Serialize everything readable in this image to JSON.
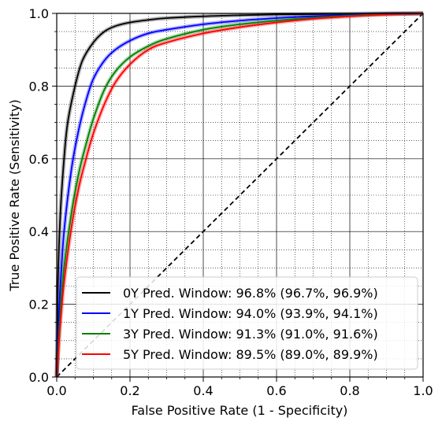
{
  "chart_data": {
    "type": "line",
    "title": "",
    "xlabel": "False Positive Rate (1 - Specificity)",
    "ylabel": "True Positive Rate (Sensitivity)",
    "xlim": [
      0,
      1
    ],
    "ylim": [
      0,
      1
    ],
    "xticks": [
      "0.0",
      "0.2",
      "0.4",
      "0.6",
      "0.8",
      "1.0"
    ],
    "yticks": [
      "0.0",
      "0.2",
      "0.4",
      "0.6",
      "0.8",
      "1.0"
    ],
    "grid": "major solid, minor dotted",
    "legend_position": "lower-right",
    "series": [
      {
        "name": "0Y Pred. Window: 96.8% (96.7%, 96.9%)",
        "color": "#000000",
        "x": [
          0,
          0.003,
          0.01,
          0.02,
          0.03,
          0.05,
          0.07,
          0.1,
          0.13,
          0.16,
          0.2,
          0.25,
          0.3,
          0.4,
          0.5,
          0.6,
          0.7,
          0.8,
          0.9,
          1.0
        ],
        "y": [
          0,
          0.25,
          0.45,
          0.6,
          0.7,
          0.8,
          0.87,
          0.92,
          0.95,
          0.965,
          0.975,
          0.982,
          0.987,
          0.992,
          0.995,
          0.997,
          0.998,
          0.999,
          1.0,
          1.0
        ]
      },
      {
        "name": "1Y Pred. Window: 94.0% (93.9%, 94.1%)",
        "color": "#0000ff",
        "x": [
          0,
          0.005,
          0.01,
          0.02,
          0.04,
          0.06,
          0.08,
          0.1,
          0.13,
          0.16,
          0.2,
          0.25,
          0.3,
          0.4,
          0.5,
          0.6,
          0.7,
          0.8,
          0.9,
          1.0
        ],
        "y": [
          0,
          0.15,
          0.25,
          0.4,
          0.57,
          0.68,
          0.76,
          0.82,
          0.87,
          0.9,
          0.925,
          0.945,
          0.955,
          0.97,
          0.98,
          0.987,
          0.992,
          0.996,
          0.999,
          1.0
        ]
      },
      {
        "name": "3Y Pred. Window: 91.3% (91.0%, 91.6%)",
        "color": "#008000",
        "x": [
          0,
          0.005,
          0.01,
          0.02,
          0.04,
          0.06,
          0.08,
          0.1,
          0.13,
          0.16,
          0.2,
          0.25,
          0.3,
          0.4,
          0.5,
          0.6,
          0.7,
          0.8,
          0.9,
          1.0
        ],
        "y": [
          0,
          0.1,
          0.18,
          0.3,
          0.45,
          0.56,
          0.64,
          0.71,
          0.79,
          0.84,
          0.88,
          0.91,
          0.93,
          0.955,
          0.97,
          0.98,
          0.988,
          0.994,
          0.998,
          1.0
        ]
      },
      {
        "name": "5Y Pred. Window: 89.5% (89.0%, 89.9%)",
        "color": "#ff0000",
        "x": [
          0,
          0.005,
          0.01,
          0.02,
          0.04,
          0.06,
          0.08,
          0.1,
          0.13,
          0.16,
          0.2,
          0.25,
          0.3,
          0.4,
          0.5,
          0.6,
          0.7,
          0.8,
          0.9,
          1.0
        ],
        "y": [
          0,
          0.08,
          0.15,
          0.26,
          0.41,
          0.52,
          0.6,
          0.67,
          0.75,
          0.81,
          0.86,
          0.9,
          0.92,
          0.945,
          0.962,
          0.975,
          0.985,
          0.992,
          0.997,
          1.0
        ]
      }
    ],
    "reference_line": {
      "x": [
        0,
        1
      ],
      "y": [
        0,
        1
      ],
      "color": "#000000",
      "style": "dashed"
    }
  }
}
